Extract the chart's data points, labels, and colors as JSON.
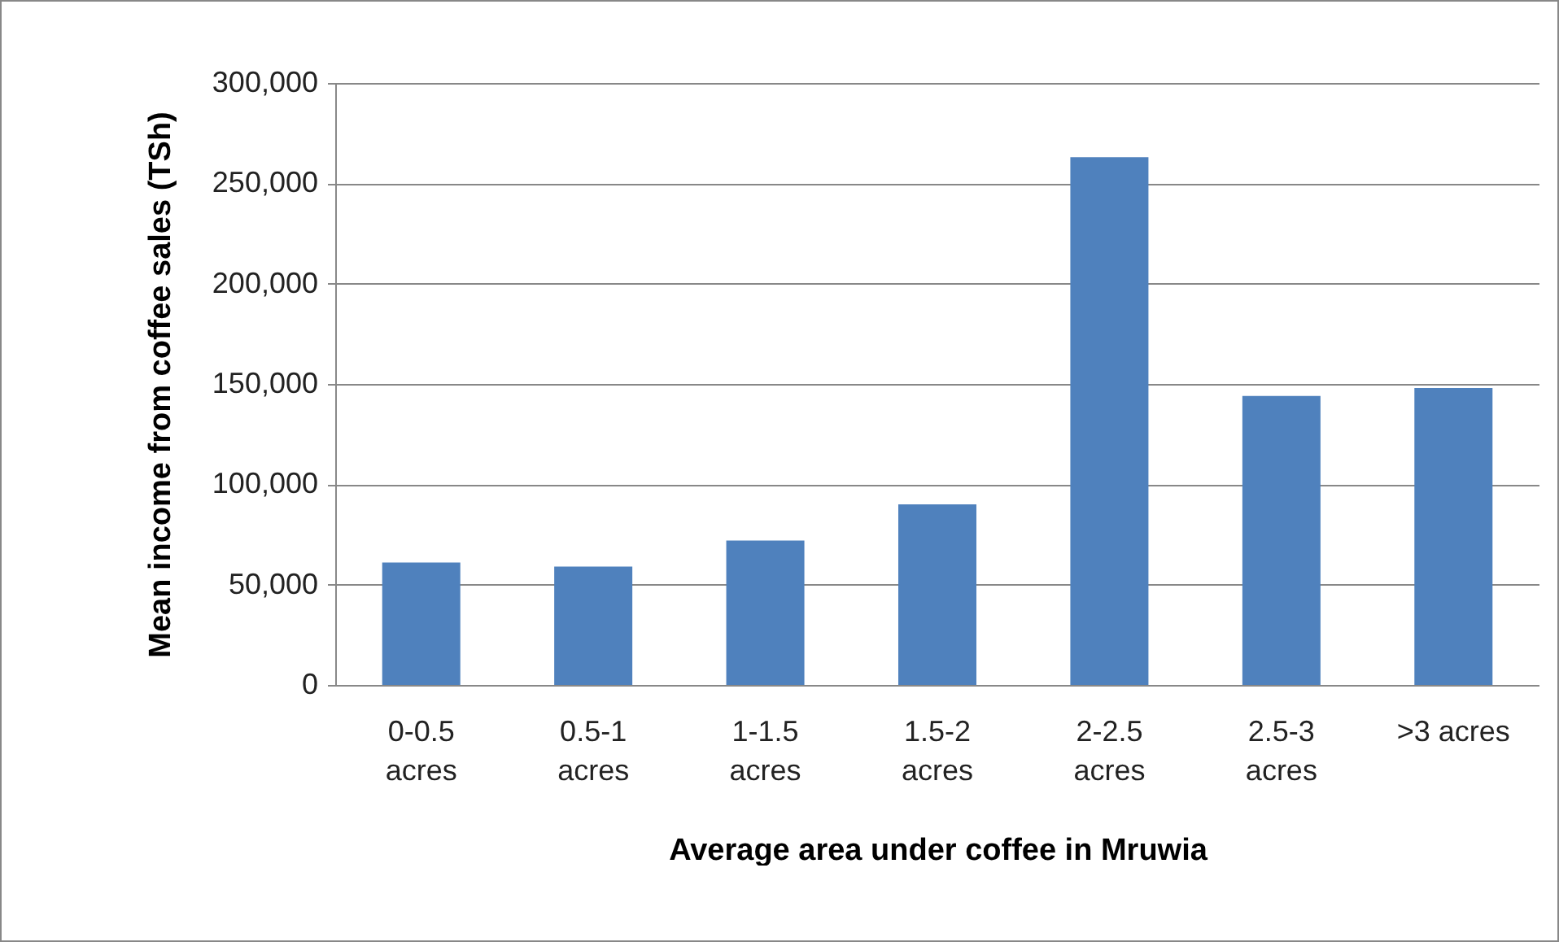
{
  "chart_data": {
    "type": "bar",
    "xlabel": "Average area under coffee in Mruwia",
    "ylabel": "Mean income from coffee sales (TSh)",
    "categories": [
      "0-0.5 acres",
      "0.5-1 acres",
      "1-1.5 acres",
      "1.5-2 acres",
      "2-2.5 acres",
      "2.5-3 acres",
      ">3 acres"
    ],
    "values": [
      61000,
      59000,
      72000,
      90000,
      263000,
      144000,
      148000
    ],
    "color": "#4f81bd",
    "ylim": [
      0,
      300000
    ],
    "yticks": [
      0,
      {
        "value": 50000,
        "label": "50,000"
      },
      {
        "value": 100000,
        "label": "100,000"
      },
      {
        "value": 150000,
        "label": "150,000"
      },
      {
        "value": 200000,
        "label": "200,000"
      },
      {
        "value": 250000,
        "label": "250,000"
      },
      {
        "value": 300000,
        "label": "300,000"
      }
    ],
    "grid": "y"
  }
}
